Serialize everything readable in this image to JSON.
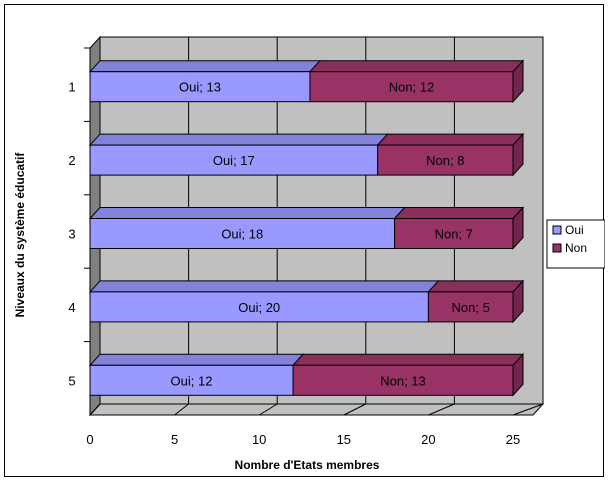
{
  "chart_data": {
    "type": "bar",
    "orientation": "horizontal",
    "stacked": true,
    "three_d": true,
    "categories": [
      "1",
      "2",
      "3",
      "4",
      "5"
    ],
    "series": [
      {
        "name": "Oui",
        "values": [
          13,
          17,
          18,
          20,
          12
        ],
        "color": "#9999FF"
      },
      {
        "name": "Non",
        "values": [
          12,
          8,
          7,
          5,
          13
        ],
        "color": "#993366"
      }
    ],
    "data_labels": [
      [
        "Oui; 13",
        "Oui; 17",
        "Oui; 18",
        "Oui; 20",
        "Oui; 12"
      ],
      [
        "Non; 12",
        "Non; 8",
        "Non; 7",
        "Non; 5",
        "Non; 13"
      ]
    ],
    "xlabel": "Nombre d'Etats membres",
    "ylabel": "Niveaux du système éducatif",
    "xlim": [
      0,
      25
    ],
    "xticks": [
      "0",
      "5",
      "10",
      "15",
      "20",
      "25"
    ],
    "grid": true,
    "wall_color": "#C0C0C0",
    "legend_position": "right"
  }
}
